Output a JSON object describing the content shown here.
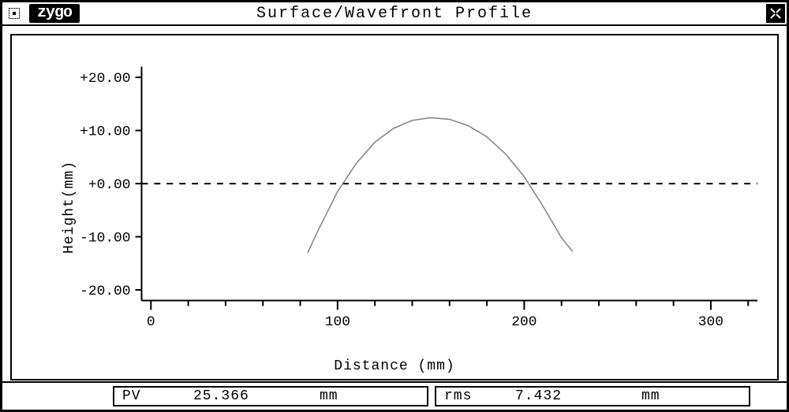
{
  "window": {
    "logo": "zygo",
    "title": "Surface/Wavefront Profile"
  },
  "chart": {
    "type": "line",
    "xlabel": "Distance (mm)",
    "ylabel": "Height(mm)",
    "xlim": [
      -5,
      325
    ],
    "ylim": [
      -22,
      22
    ],
    "xticks_major": [
      0,
      100,
      200,
      300
    ],
    "xticks_major_labels": [
      "0",
      "100",
      "200",
      "300"
    ],
    "xticks_minor_step": 20,
    "yticks": [
      -20,
      -10,
      0,
      10,
      20
    ],
    "yticks_labels": [
      "-20.00",
      "-10.00",
      "+0.00",
      "+10.00",
      "+20.00"
    ],
    "background_color": "#ffffff",
    "axis_color": "#000000",
    "tick_color": "#000000",
    "zero_line_color": "#000000",
    "zero_line_dash": "8 8",
    "curve_color": "#808080",
    "curve_width": 1.5,
    "tick_label_fontsize": 18,
    "axis_label_fontsize": 18,
    "series": {
      "x": [
        84,
        90,
        100,
        110,
        120,
        130,
        140,
        150,
        160,
        170,
        180,
        190,
        200,
        210,
        220,
        226
      ],
      "y": [
        -13.0,
        -8.5,
        -1.5,
        3.8,
        7.8,
        10.4,
        11.9,
        12.4,
        12.1,
        10.9,
        8.8,
        5.6,
        1.3,
        -4.2,
        -10.2,
        -12.8
      ]
    }
  },
  "status": {
    "pv": {
      "label": "PV",
      "value": "25.366",
      "unit": "mm"
    },
    "rms": {
      "label": "rms",
      "value": "7.432",
      "unit": "mm"
    }
  }
}
